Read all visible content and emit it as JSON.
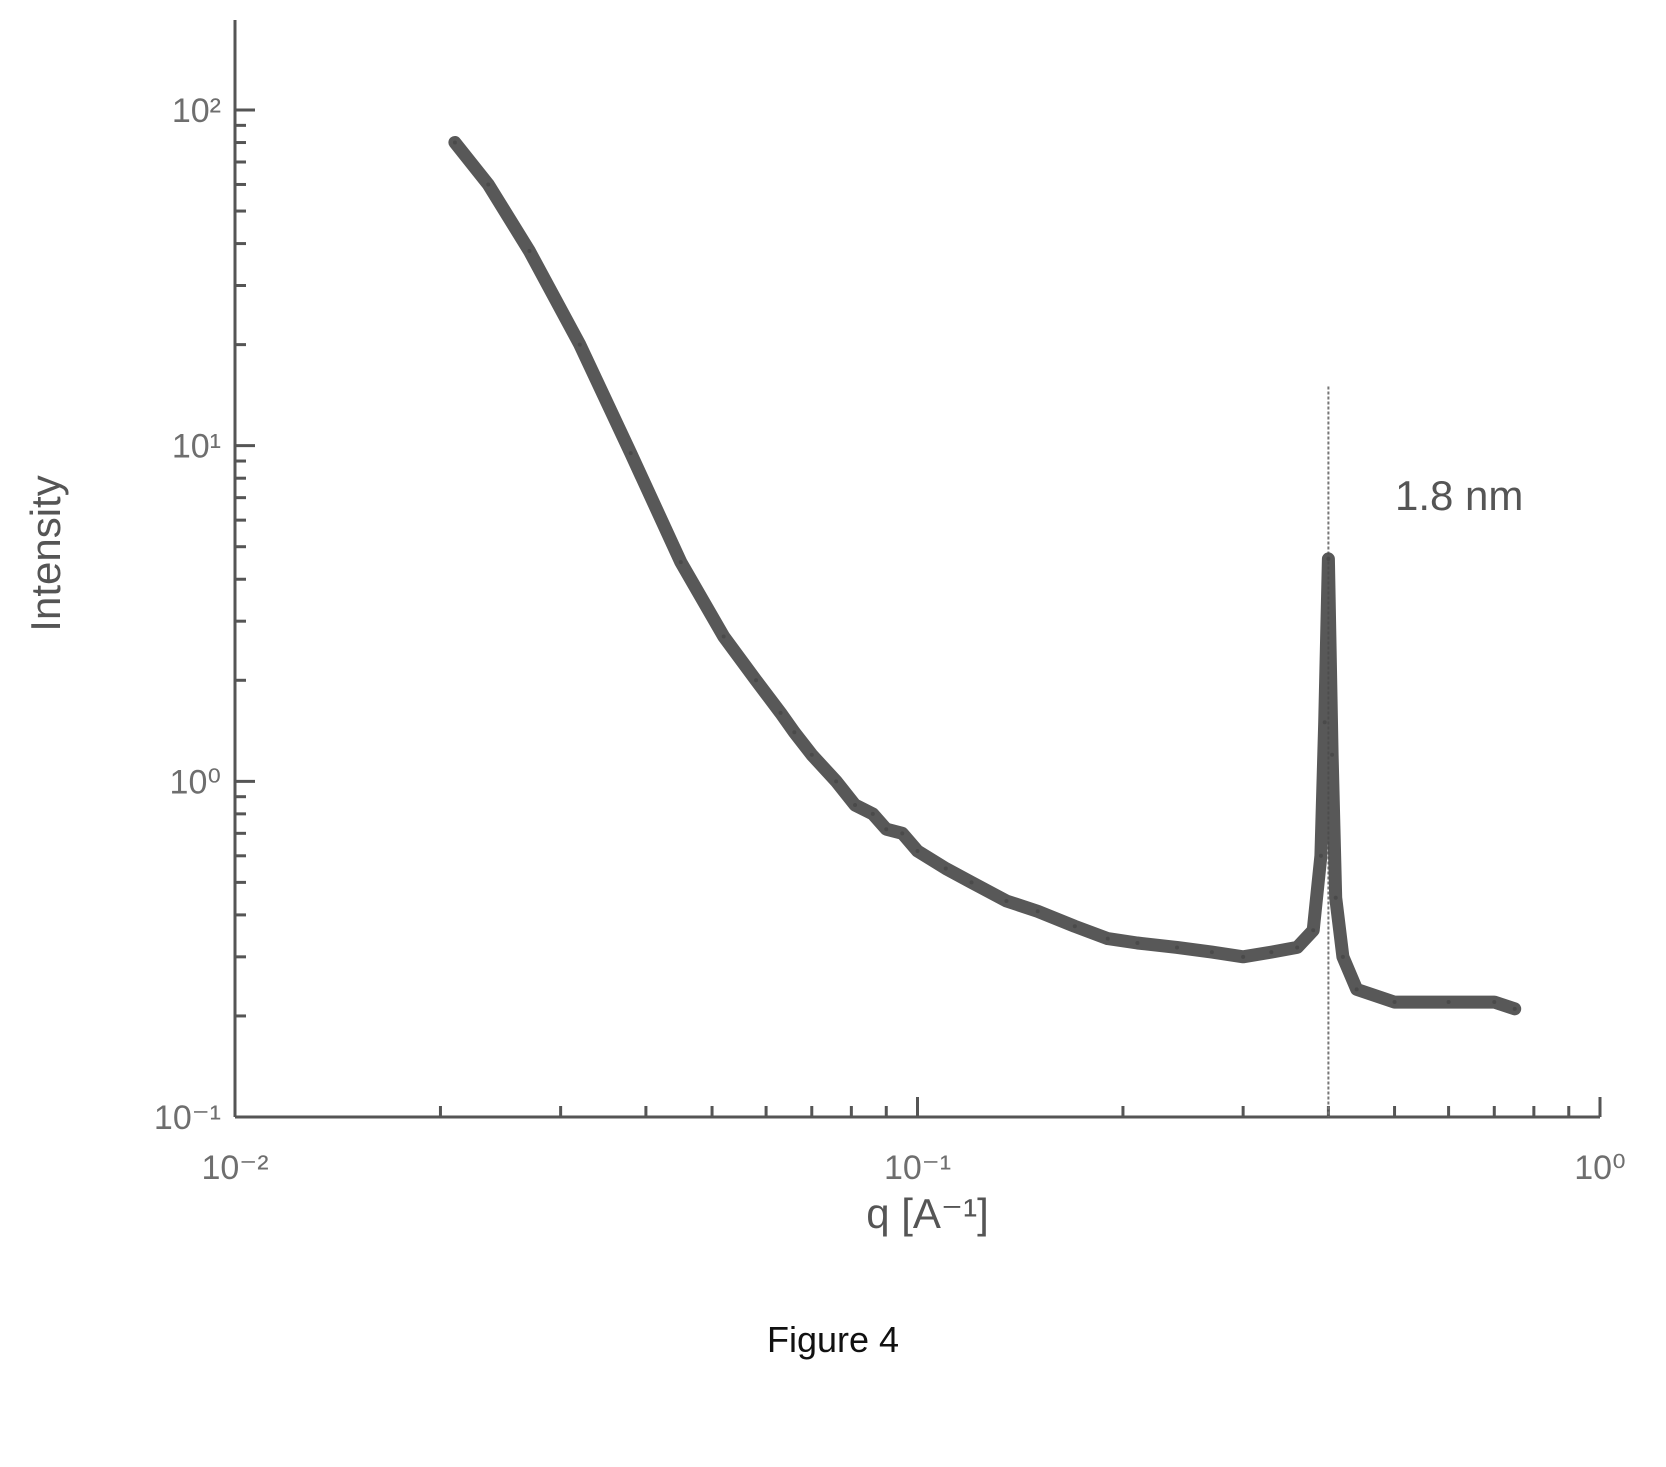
{
  "chart_data": {
    "type": "line",
    "title": "",
    "xlabel": "q [A⁻¹]",
    "ylabel": "Intensity",
    "xscale": "log",
    "yscale": "log",
    "xlim": [
      0.01,
      1
    ],
    "ylim": [
      0.1,
      100
    ],
    "x_tick_labels": [
      "10⁻²",
      "10⁻¹",
      "10⁰"
    ],
    "x_tick_values": [
      0.01,
      0.1,
      1
    ],
    "y_tick_labels": [
      "10⁻¹",
      "10⁰",
      "10¹",
      "10²"
    ],
    "y_tick_values": [
      0.1,
      1,
      10,
      100
    ],
    "grid": false,
    "legend": "none",
    "series": [
      {
        "x": [
          0.021,
          0.0235,
          0.027,
          0.032,
          0.038,
          0.045,
          0.052,
          0.058,
          0.063,
          0.066,
          0.07,
          0.076,
          0.081,
          0.086,
          0.09,
          0.095,
          0.1,
          0.11,
          0.12,
          0.135,
          0.15,
          0.17,
          0.19,
          0.21,
          0.24,
          0.27,
          0.3,
          0.33,
          0.36,
          0.38,
          0.39,
          0.395,
          0.4,
          0.405,
          0.41,
          0.42,
          0.44,
          0.5,
          0.6,
          0.7,
          0.75
        ],
        "y": [
          80,
          60,
          38,
          20,
          9.5,
          4.5,
          2.7,
          2.0,
          1.6,
          1.4,
          1.2,
          1.0,
          0.85,
          0.8,
          0.72,
          0.7,
          0.62,
          0.55,
          0.5,
          0.44,
          0.41,
          0.37,
          0.34,
          0.33,
          0.32,
          0.31,
          0.3,
          0.31,
          0.32,
          0.36,
          0.6,
          1.5,
          4.6,
          1.2,
          0.45,
          0.3,
          0.24,
          0.22,
          0.22,
          0.22,
          0.21
        ]
      }
    ],
    "annotations": [
      {
        "text": "1.8 nm",
        "x": 0.4
      }
    ],
    "vertical_line_x": 0.4,
    "vertical_line_y_top": 15
  },
  "figure": {
    "caption": "Figure 4"
  },
  "colors": {
    "line": "#4a4a4a",
    "axis": "#555555",
    "text": "#6e6e6e"
  }
}
